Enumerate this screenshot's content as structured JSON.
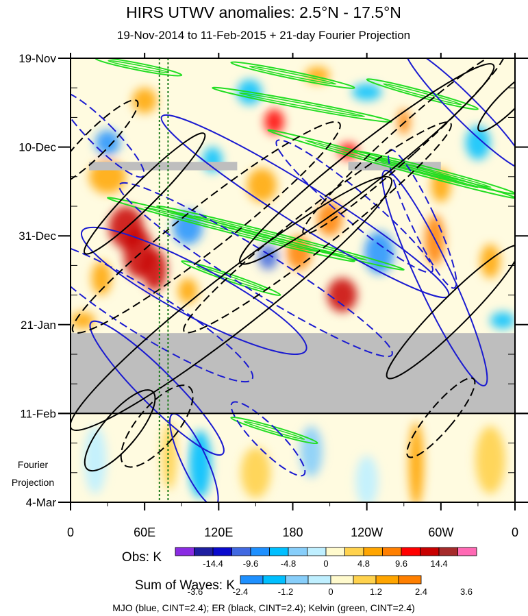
{
  "chart_data": {
    "type": "heatmap",
    "title": "HIRS UTWV anomalies: 2.5°N - 17.5°N",
    "subtitle": "19-Nov-2014 to 11-Feb-2015 + 21-day Fourier Projection",
    "x_tick_labels": [
      "0",
      "60E",
      "120E",
      "180",
      "120W",
      "60W",
      "0"
    ],
    "x_tick_degrees": [
      0,
      60,
      120,
      180,
      240,
      300,
      360
    ],
    "xlim": [
      0,
      360
    ],
    "y_tick_labels": [
      "19-Nov",
      "10-Dec",
      "31-Dec",
      "21-Jan",
      "11-Feb",
      "4-Mar"
    ],
    "y_tick_days": [
      0,
      21,
      42,
      63,
      84,
      105
    ],
    "ylim": [
      0,
      105
    ],
    "projection_label": [
      "Fourier",
      "Projection"
    ],
    "obs_end_day": 84,
    "missing_data_bands": [
      {
        "day_start": 65,
        "day_end": 84,
        "lon_start": 0,
        "lon_end": 360
      },
      {
        "day_start": 24.5,
        "day_end": 26.5,
        "lon_start": 15,
        "lon_end": 135
      },
      {
        "day_start": 24.5,
        "day_end": 26.5,
        "lon_start": 225,
        "lon_end": 300
      }
    ],
    "reference_lines_lon": [
      72,
      79
    ],
    "obs_colorbar": {
      "label": "Obs: K",
      "tick_labels": [
        "-14.4",
        "-9.6",
        "-4.8",
        "0",
        "4.8",
        "9.6",
        "14.4"
      ],
      "colors": [
        "#8a2be2",
        "#1e1ea0",
        "#0a0acd",
        "#4169e1",
        "#1e90ff",
        "#00bfff",
        "#87cefa",
        "#bfefff",
        "#fffacd",
        "#ffd24d",
        "#ffa500",
        "#ff7f00",
        "#ff0000",
        "#c80000",
        "#a52a2a",
        "#ff69b4"
      ]
    },
    "waves_colorbar": {
      "label": "Sum of Waves: K",
      "tick_labels": [
        "-3.6",
        "-2.4",
        "-1.2",
        "0",
        "1.2",
        "2.4",
        "3.6"
      ],
      "colors": [
        "#1e90ff",
        "#00bfff",
        "#87cefa",
        "#bfefff",
        "#fffacd",
        "#ffd24d",
        "#ffa500",
        "#ff7f00"
      ]
    },
    "footer": "MJO (blue, CINT=2.4); ER (black, CINT=2.4); Kelvin (green, CINT=2.4)",
    "anomaly_blobs": [
      {
        "lon": 45,
        "day": 40,
        "value": 12,
        "rlon": 14,
        "rday": 5
      },
      {
        "lon": 55,
        "day": 46,
        "value": 14,
        "rlon": 12,
        "rday": 6
      },
      {
        "lon": 68,
        "day": 50,
        "value": 12,
        "rlon": 10,
        "rday": 5
      },
      {
        "lon": 25,
        "day": 52,
        "value": 6,
        "rlon": 8,
        "rday": 4
      },
      {
        "lon": 160,
        "day": 47,
        "value": -12,
        "rlon": 8,
        "rday": 3
      },
      {
        "lon": 185,
        "day": 46,
        "value": 9,
        "rlon": 10,
        "rday": 4
      },
      {
        "lon": 220,
        "day": 56,
        "value": 12,
        "rlon": 12,
        "rday": 4
      },
      {
        "lon": 210,
        "day": 38,
        "value": 8,
        "rlon": 10,
        "rday": 4
      },
      {
        "lon": 165,
        "day": 15,
        "value": 10,
        "rlon": 8,
        "rday": 3
      },
      {
        "lon": 225,
        "day": 22,
        "value": 10,
        "rlon": 8,
        "rday": 2
      },
      {
        "lon": 270,
        "day": 15,
        "value": 9,
        "rlon": 5,
        "rday": 3
      },
      {
        "lon": 295,
        "day": 43,
        "value": 8,
        "rlon": 8,
        "rday": 6
      },
      {
        "lon": 300,
        "day": 30,
        "value": 6,
        "rlon": 8,
        "rday": 4
      },
      {
        "lon": 155,
        "day": 30,
        "value": 7,
        "rlon": 12,
        "rday": 4
      },
      {
        "lon": 30,
        "day": 28,
        "value": 6,
        "rlon": 15,
        "rday": 4
      },
      {
        "lon": 145,
        "day": 8,
        "value": -6,
        "rlon": 10,
        "rday": 3
      },
      {
        "lon": 240,
        "day": 8,
        "value": -7,
        "rlon": 12,
        "rday": 2
      },
      {
        "lon": 30,
        "day": 20,
        "value": -8,
        "rlon": 10,
        "rday": 3
      },
      {
        "lon": 95,
        "day": 40,
        "value": -9,
        "rlon": 12,
        "rday": 4
      },
      {
        "lon": 250,
        "day": 46,
        "value": -8,
        "rlon": 12,
        "rday": 5
      },
      {
        "lon": 330,
        "day": 20,
        "value": -6,
        "rlon": 10,
        "rday": 4
      },
      {
        "lon": 340,
        "day": 48,
        "value": 7,
        "rlon": 8,
        "rday": 4
      },
      {
        "lon": 10,
        "day": 62,
        "value": 5,
        "rlon": 10,
        "rday": 2
      },
      {
        "lon": 350,
        "day": 62,
        "value": -5,
        "rlon": 10,
        "rday": 2
      },
      {
        "lon": 115,
        "day": 24,
        "value": -6,
        "rlon": 8,
        "rday": 3
      },
      {
        "lon": 200,
        "day": 4,
        "value": 6,
        "rlon": 10,
        "rday": 2
      },
      {
        "lon": 60,
        "day": 10,
        "value": 5,
        "rlon": 10,
        "rday": 3
      },
      {
        "lon": 95,
        "day": 55,
        "value": 6,
        "rlon": 8,
        "rday": 3
      }
    ],
    "projection_blobs": [
      {
        "lon": 280,
        "day": 96,
        "value": 3.4,
        "rlon": 6,
        "rday": 10
      },
      {
        "lon": 80,
        "day": 94,
        "value": 2.0,
        "rlon": 6,
        "rday": 8
      },
      {
        "lon": 105,
        "day": 96,
        "value": -3.0,
        "rlon": 9,
        "rday": 8
      },
      {
        "lon": 195,
        "day": 93,
        "value": -1.8,
        "rlon": 9,
        "rday": 6
      },
      {
        "lon": 20,
        "day": 95,
        "value": -1.0,
        "rlon": 9,
        "rday": 8
      },
      {
        "lon": 340,
        "day": 95,
        "value": 1.2,
        "rlon": 12,
        "rday": 8
      },
      {
        "lon": 150,
        "day": 98,
        "value": 1.2,
        "rlon": 12,
        "rday": 6
      },
      {
        "lon": 240,
        "day": 100,
        "value": -1.2,
        "rlon": 9,
        "rday": 6
      }
    ],
    "mjo_contours": [
      {
        "lon": 100,
        "day": 55,
        "rlon": 20,
        "rday": 30,
        "angle": -62,
        "dashed": false
      },
      {
        "lon": 190,
        "day": 35,
        "rlon": 16,
        "rday": 40,
        "angle": -58,
        "dashed": false
      },
      {
        "lon": 295,
        "day": 52,
        "rlon": 14,
        "rday": 28,
        "angle": -25,
        "dashed": false
      },
      {
        "lon": 320,
        "day": 12,
        "rlon": 10,
        "rday": 20,
        "angle": -45,
        "dashed": false
      },
      {
        "lon": 100,
        "day": 95,
        "rlon": 10,
        "rday": 12,
        "angle": -25,
        "dashed": false
      },
      {
        "lon": 70,
        "day": 78,
        "rlon": 14,
        "rday": 22,
        "angle": -45,
        "dashed": false
      },
      {
        "lon": 60,
        "day": 60,
        "rlon": 18,
        "rday": 30,
        "angle": -58,
        "dashed": true
      },
      {
        "lon": 150,
        "day": 50,
        "rlon": 16,
        "rday": 38,
        "angle": -58,
        "dashed": true
      },
      {
        "lon": 230,
        "day": 35,
        "rlon": 12,
        "rday": 24,
        "angle": -50,
        "dashed": true
      },
      {
        "lon": 285,
        "day": 38,
        "rlon": 10,
        "rday": 18,
        "angle": -25,
        "dashed": true
      },
      {
        "lon": 25,
        "day": 18,
        "rlon": 10,
        "rday": 14,
        "angle": -45,
        "dashed": true
      },
      {
        "lon": 160,
        "day": 90,
        "rlon": 10,
        "rday": 12,
        "angle": -45,
        "dashed": true
      }
    ],
    "er_contours": [
      {
        "lon": 130,
        "day": 58,
        "rlon": 22,
        "rday": 48,
        "angle": 52,
        "dashed": false
      },
      {
        "lon": 240,
        "day": 25,
        "rlon": 16,
        "rday": 38,
        "angle": 52,
        "dashed": false
      },
      {
        "lon": 310,
        "day": 60,
        "rlon": 12,
        "rday": 22,
        "angle": 45,
        "dashed": false
      },
      {
        "lon": 60,
        "day": 32,
        "rlon": 10,
        "rday": 20,
        "angle": 45,
        "dashed": false
      },
      {
        "lon": 355,
        "day": 10,
        "rlon": 8,
        "rday": 10,
        "angle": 45,
        "dashed": false
      },
      {
        "lon": 40,
        "day": 88,
        "rlon": 14,
        "rday": 12,
        "angle": 40,
        "dashed": false
      },
      {
        "lon": 110,
        "day": 40,
        "rlon": 18,
        "rday": 40,
        "angle": 52,
        "dashed": true
      },
      {
        "lon": 200,
        "day": 40,
        "rlon": 16,
        "rday": 40,
        "angle": 52,
        "dashed": true
      },
      {
        "lon": 270,
        "day": 20,
        "rlon": 12,
        "rday": 32,
        "angle": 48,
        "dashed": true
      },
      {
        "lon": 20,
        "day": 20,
        "rlon": 10,
        "rday": 14,
        "angle": 45,
        "dashed": true
      },
      {
        "lon": 300,
        "day": 85,
        "rlon": 10,
        "rday": 12,
        "angle": 40,
        "dashed": true
      },
      {
        "lon": 70,
        "day": 87,
        "rlon": 16,
        "rday": 12,
        "angle": 40,
        "dashed": true
      }
    ],
    "kelvin_bands": [
      {
        "lon_start": 20,
        "day_start": 0,
        "lon_end": 90,
        "day_end": 4
      },
      {
        "lon_start": 130,
        "day_start": 1,
        "lon_end": 230,
        "day_end": 7
      },
      {
        "lon_start": 115,
        "day_start": 7,
        "lon_end": 260,
        "day_end": 15
      },
      {
        "lon_start": 160,
        "day_start": 17,
        "lon_end": 360,
        "day_end": 33
      },
      {
        "lon_start": 70,
        "day_start": 35,
        "lon_end": 270,
        "day_end": 50
      },
      {
        "lon_start": 30,
        "day_start": 33,
        "lon_end": 230,
        "day_end": 48
      },
      {
        "lon_start": 240,
        "day_start": 5,
        "lon_end": 330,
        "day_end": 12
      },
      {
        "lon_start": 230,
        "day_start": 22,
        "lon_end": 360,
        "day_end": 32
      },
      {
        "lon_start": 90,
        "day_start": 48,
        "lon_end": 170,
        "day_end": 56
      },
      {
        "lon_start": 130,
        "day_start": 85,
        "lon_end": 200,
        "day_end": 91
      }
    ]
  }
}
